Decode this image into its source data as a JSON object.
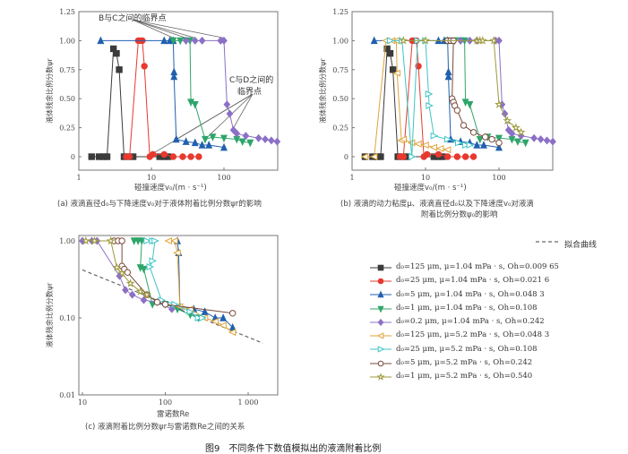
{
  "figure_caption": "图9　不同条件下数值模拟出的液滴附着比例",
  "chart_data": [
    {
      "id": "a",
      "type": "line",
      "caption": "(a) 液滴直径d₀与下降速度v₀对于液体附着比例分数ψr的影响",
      "xlabel": "碰撞速度v₀/(m · s⁻¹)",
      "ylabel": "液体残余比例分数ψr",
      "xscale": "log",
      "xlim": [
        1,
        560
      ],
      "ylim": [
        -0.12,
        1.25
      ],
      "xticks": [
        "1",
        "10",
        "100"
      ],
      "yticks": [
        "0",
        "0.25",
        "0.50",
        "0.75",
        "1.00",
        "1.25"
      ],
      "series_indices": [
        0,
        1,
        2,
        3,
        4
      ],
      "annotations": [
        "B与C之间的临界点",
        "C与D之间的",
        "临界点"
      ]
    },
    {
      "id": "b",
      "type": "line",
      "caption_line1": "(b) 液滴的动力粘度μ、液滴直径d₀以及下降速度v₀对液滴",
      "caption_line2": "附着比例分数ψ₀的影响",
      "xlabel": "碰撞速度v₀/(m · s⁻¹)",
      "ylabel": "液体残余比例分数ψr",
      "xscale": "log",
      "xlim": [
        1,
        560
      ],
      "ylim": [
        -0.12,
        1.25
      ],
      "xticks": [
        "1",
        "10",
        "100"
      ],
      "yticks": [
        "0",
        "0.25",
        "0.50",
        "0.75",
        "1.00",
        "1.25"
      ],
      "series_indices": [
        0,
        1,
        2,
        3,
        4,
        5,
        6,
        7,
        8
      ]
    },
    {
      "id": "c",
      "type": "scatter",
      "caption": "(c) 液滴附着比例分数ψr与雷诺数Re之间的关系",
      "xlabel": "雷诺数Re",
      "ylabel": "液体残余比例分数ψr",
      "xscale": "log",
      "yscale": "log",
      "xlim": [
        9,
        2300
      ],
      "ylim": [
        0.0098,
        1.17
      ],
      "xticks": [
        "10",
        "100",
        "1 000"
      ],
      "yticks": [
        "0.01",
        "0.10",
        "1.00"
      ],
      "fit_label": "拟合曲线",
      "fit_line": [
        [
          10,
          0.42
        ],
        [
          1500,
          0.047
        ]
      ]
    }
  ],
  "series": [
    {
      "name": "d₀=125 μm, μ=1.04 mPa · s, Oh=0.009 65",
      "color": "#3b3b3b",
      "marker": "square",
      "fill": true,
      "v": [
        [
          1.5,
          0
        ],
        [
          1.9,
          0
        ],
        [
          2.2,
          0
        ],
        [
          2.45,
          0
        ],
        [
          3,
          0.93
        ],
        [
          3.3,
          0.89
        ],
        [
          3.6,
          0.75
        ],
        [
          4.2,
          0
        ],
        [
          4.8,
          0
        ],
        [
          5.6,
          0
        ],
        [
          13,
          0
        ],
        [
          15,
          0
        ],
        [
          17,
          0
        ]
      ],
      "re": []
    },
    {
      "name": "d₀=25 μm, μ=1.04 mPa · s, Oh=0.021 6",
      "color": "#e8392f",
      "marker": "circle",
      "fill": true,
      "v": [
        [
          4.5,
          0
        ],
        [
          5,
          0
        ],
        [
          6.6,
          1
        ],
        [
          7,
          1
        ],
        [
          7.5,
          1
        ],
        [
          8,
          0.78
        ],
        [
          9.5,
          0
        ],
        [
          10.5,
          0.02
        ],
        [
          15,
          0.02
        ],
        [
          20,
          0
        ],
        [
          27,
          0
        ],
        [
          35,
          0
        ],
        [
          45,
          0
        ]
      ],
      "re": []
    },
    {
      "name": "d₀=5 μm, μ=1.04 mPa · s, Oh=0.048 3",
      "color": "#2160b0",
      "marker": "triup",
      "fill": true,
      "v": [
        [
          2,
          1
        ],
        [
          15,
          1
        ],
        [
          18,
          1
        ],
        [
          20,
          1
        ],
        [
          20.5,
          0.73
        ],
        [
          20.5,
          0.69
        ],
        [
          22,
          0.15
        ],
        [
          30,
          0.13
        ],
        [
          40,
          0.12
        ],
        [
          50,
          0.1
        ],
        [
          62,
          0.1
        ],
        [
          100,
          0.08
        ]
      ],
      "re": [
        [
          140,
          1
        ],
        [
          145,
          0.7
        ],
        [
          150,
          0.14
        ],
        [
          220,
          0.13
        ],
        [
          300,
          0.12
        ],
        [
          400,
          0.1
        ],
        [
          500,
          0.1
        ],
        [
          650,
          0.075
        ]
      ]
    },
    {
      "name": "d₀=1 μm, μ=1.04 mPa · s, Oh=0.108",
      "color": "#2fa56a",
      "marker": "tridown",
      "fill": true,
      "v": [
        [
          20,
          1
        ],
        [
          25,
          1
        ],
        [
          30,
          1
        ],
        [
          34,
          1
        ],
        [
          35,
          0.47
        ],
        [
          40,
          0.45
        ],
        [
          55,
          0.15
        ],
        [
          70,
          0.17
        ],
        [
          100,
          0.16
        ],
        [
          150,
          0.15
        ],
        [
          180,
          0.13
        ],
        [
          230,
          0.12
        ]
      ],
      "re": [
        [
          42,
          1
        ],
        [
          47,
          1
        ],
        [
          52,
          1
        ],
        [
          50,
          0.45
        ],
        [
          55,
          0.43
        ],
        [
          70,
          0.15
        ],
        [
          100,
          0.15
        ],
        [
          140,
          0.13
        ],
        [
          200,
          0.11
        ],
        [
          250,
          0.1
        ]
      ]
    },
    {
      "name": "d₀=0.2 μm, μ=1.04 mPa · s, Oh=0.242",
      "color": "#8c70c6",
      "marker": "diamond",
      "fill": true,
      "v": [
        [
          30,
          1
        ],
        [
          40,
          1
        ],
        [
          50,
          1
        ],
        [
          90,
          1
        ],
        [
          100,
          1
        ],
        [
          110,
          0.45
        ],
        [
          120,
          0.37
        ],
        [
          135,
          0.23
        ],
        [
          150,
          0.2
        ],
        [
          200,
          0.18
        ],
        [
          300,
          0.16
        ],
        [
          370,
          0.15
        ],
        [
          450,
          0.14
        ],
        [
          540,
          0.13
        ]
      ],
      "re": [
        [
          10,
          1
        ],
        [
          13,
          1
        ],
        [
          15,
          1
        ],
        [
          28,
          0.35
        ],
        [
          33,
          0.23
        ],
        [
          40,
          0.2
        ],
        [
          55,
          0.17
        ],
        [
          80,
          0.16
        ],
        [
          120,
          0.13
        ]
      ]
    },
    {
      "name": "d₀=125 μm, μ=5.2 mPa · s, Oh=0.048 3",
      "color": "#e0a43a",
      "marker": "trileft",
      "fill": false,
      "v": [
        [
          1.5,
          0
        ],
        [
          2,
          0
        ],
        [
          2.9,
          1
        ],
        [
          3.5,
          1
        ],
        [
          4,
          1
        ],
        [
          4.1,
          0.72
        ],
        [
          4.7,
          0.14
        ],
        [
          5,
          0.15
        ],
        [
          6.5,
          0.12
        ],
        [
          8,
          0.11
        ],
        [
          10,
          0.1
        ],
        [
          13,
          0.08
        ],
        [
          16,
          0.07
        ],
        [
          20,
          0.06
        ]
      ],
      "re": [
        [
          110,
          1
        ],
        [
          130,
          1
        ],
        [
          140,
          0.7
        ],
        [
          150,
          0.14
        ],
        [
          200,
          0.13
        ],
        [
          300,
          0.1
        ],
        [
          400,
          0.09
        ],
        [
          500,
          0.08
        ],
        [
          650,
          0.065
        ]
      ]
    },
    {
      "name": "d₀=25 μm, μ=5.2 mPa · s, Oh=0.108",
      "color": "#40c4c4",
      "marker": "triright",
      "fill": false,
      "v": [
        [
          3.3,
          1
        ],
        [
          4.8,
          1
        ],
        [
          6.5,
          0
        ],
        [
          7.8,
          1
        ],
        [
          10,
          1
        ],
        [
          11,
          0.54
        ],
        [
          11.2,
          0.44
        ],
        [
          13,
          0.18
        ],
        [
          20,
          0.15
        ],
        [
          28,
          0.12
        ],
        [
          35,
          0.1
        ],
        [
          40,
          0.1
        ]
      ],
      "re": [
        [
          60,
          1
        ],
        [
          70,
          1
        ],
        [
          75,
          1
        ],
        [
          70,
          0.55
        ],
        [
          65,
          0.46
        ],
        [
          90,
          0.17
        ],
        [
          130,
          0.15
        ],
        [
          200,
          0.12
        ],
        [
          250,
          0.1
        ],
        [
          280,
          0.1
        ]
      ]
    },
    {
      "name": "d₀=5 μm, μ=5.2 mPa · s, Oh=0.242",
      "color": "#7a4a3c",
      "marker": "circle",
      "fill": false,
      "v": [
        [
          20,
          1
        ],
        [
          22,
          1
        ],
        [
          24,
          1
        ],
        [
          23,
          0.5
        ],
        [
          24,
          0.47
        ],
        [
          25,
          0.44
        ],
        [
          27,
          0.4
        ],
        [
          33,
          0.27
        ],
        [
          45,
          0.21
        ],
        [
          65,
          0.17
        ],
        [
          80,
          0.15
        ],
        [
          100,
          0.12
        ]
      ],
      "re": [
        [
          24,
          1
        ],
        [
          27,
          1
        ],
        [
          30,
          1
        ],
        [
          30,
          0.47
        ],
        [
          32,
          0.43
        ],
        [
          35,
          0.39
        ],
        [
          60,
          0.2
        ],
        [
          80,
          0.16
        ],
        [
          100,
          0.15
        ],
        [
          650,
          0.115
        ]
      ]
    },
    {
      "name": "d₀=1 μm, μ=5.2 mPa · s, Oh=0.540",
      "color": "#9c9a3a",
      "marker": "star",
      "fill": false,
      "v": [
        [
          5,
          1
        ],
        [
          10,
          1
        ],
        [
          50,
          1
        ],
        [
          55,
          1
        ],
        [
          60,
          1
        ],
        [
          85,
          1
        ],
        [
          100,
          0.45
        ],
        [
          130,
          0.31
        ],
        [
          170,
          0.25
        ],
        [
          200,
          0.21
        ]
      ],
      "re": [
        [
          11,
          1
        ],
        [
          14,
          1
        ],
        [
          22,
          1
        ],
        [
          26,
          0.45
        ],
        [
          30,
          0.38
        ],
        [
          38,
          0.28
        ],
        [
          50,
          0.22
        ],
        [
          60,
          0.2
        ]
      ]
    }
  ]
}
